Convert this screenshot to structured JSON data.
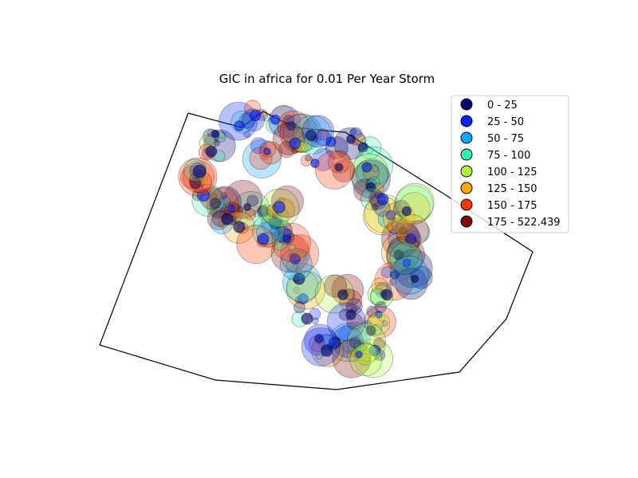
{
  "chart_data": {
    "type": "scatter",
    "title": "GIC in africa for 0.01 Per Year Storm",
    "legend_position": "top-right",
    "grid": false,
    "legend": [
      {
        "label": "0 - 25",
        "color": "#00006e"
      },
      {
        "label": "25 - 50",
        "color": "#0022ff"
      },
      {
        "label": "50 - 75",
        "color": "#0aa6ff"
      },
      {
        "label": "75 - 100",
        "color": "#38f2b0"
      },
      {
        "label": "100 - 125",
        "color": "#b4ff3c"
      },
      {
        "label": "125 - 150",
        "color": "#ffa800"
      },
      {
        "label": "150 - 175",
        "color": "#ff3500"
      },
      {
        "label": "175 - 522.439",
        "color": "#7f0000"
      }
    ]
  }
}
